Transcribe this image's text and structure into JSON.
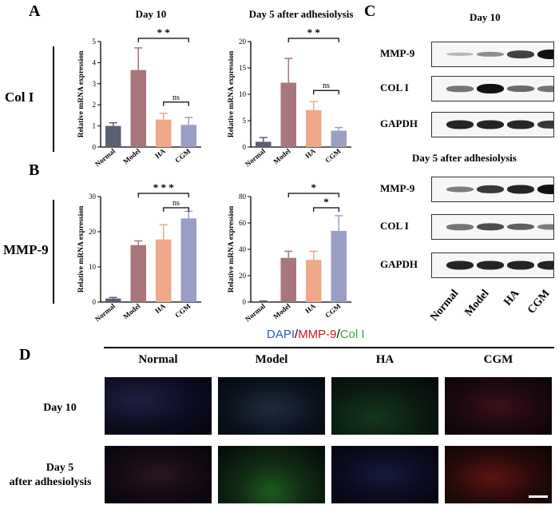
{
  "panels": {
    "A": "A",
    "B": "B",
    "C": "C",
    "D": "D"
  },
  "row_labels": {
    "col": "Col I",
    "mmp": "MMP-9"
  },
  "categories": [
    "Normal",
    "Model",
    "HA",
    "CGM"
  ],
  "colors": {
    "Normal": "#5b5f73",
    "Model": "#a8757b",
    "HA": "#f0a88a",
    "CGM": "#9a9ec4"
  },
  "chart_data": [
    {
      "type": "bar",
      "title": "Day 10",
      "ylabel": "Relative mRNA expression",
      "categories": [
        "Normal",
        "Model",
        "HA",
        "CGM"
      ],
      "values": [
        1.0,
        3.65,
        1.3,
        1.05
      ],
      "errors": [
        0.15,
        1.05,
        0.3,
        0.35
      ],
      "ylim": [
        0,
        5
      ],
      "yticks": [
        "0",
        "1",
        "2",
        "3",
        "4",
        "5"
      ],
      "annotations": [
        {
          "text": "* *",
          "from": 1,
          "to": 3
        },
        {
          "text": "ns",
          "from": 2,
          "to": 3
        }
      ]
    },
    {
      "type": "bar",
      "title": "Day 5 after adhesiolysis",
      "ylabel": "Relative mRNA expression",
      "categories": [
        "Normal",
        "Model",
        "HA",
        "CGM"
      ],
      "values": [
        1.0,
        12.2,
        7.0,
        3.1
      ],
      "errors": [
        0.8,
        4.6,
        1.6,
        0.6
      ],
      "ylim": [
        0,
        20
      ],
      "yticks": [
        "0",
        "5",
        "10",
        "15",
        "20"
      ],
      "annotations": [
        {
          "text": "* *",
          "from": 1,
          "to": 3
        },
        {
          "text": "ns",
          "from": 2,
          "to": 3
        }
      ]
    },
    {
      "type": "bar",
      "title": "",
      "ylabel": "Relative mRNA expression",
      "categories": [
        "Normal",
        "Model",
        "HA",
        "CGM"
      ],
      "values": [
        1.0,
        16.2,
        17.8,
        23.8
      ],
      "errors": [
        0.3,
        1.2,
        4.2,
        2.0
      ],
      "ylim": [
        0,
        30
      ],
      "yticks": [
        "0",
        "10",
        "20",
        "30"
      ],
      "annotations": [
        {
          "text": "* * *",
          "from": 1,
          "to": 3
        },
        {
          "text": "ns",
          "from": 2,
          "to": 3
        }
      ]
    },
    {
      "type": "bar",
      "title": "",
      "ylabel": "Relative mRNA expression",
      "categories": [
        "Normal",
        "Model",
        "HA",
        "CGM"
      ],
      "values": [
        0.5,
        33.5,
        32.0,
        54.0
      ],
      "errors": [
        0.3,
        5.0,
        6.5,
        11.5
      ],
      "ylim": [
        0,
        80
      ],
      "yticks": [
        "0",
        "20",
        "40",
        "60",
        "80"
      ],
      "annotations": [
        {
          "text": "*",
          "from": 1,
          "to": 3
        },
        {
          "text": "*",
          "from": 2,
          "to": 3
        }
      ]
    }
  ],
  "western": {
    "groups": [
      {
        "title": "Day 10",
        "rows": [
          {
            "label": "MMP-9",
            "intensity": [
              0.15,
              0.35,
              0.75,
              1.0
            ]
          },
          {
            "label": "COL I",
            "intensity": [
              0.5,
              1.0,
              0.55,
              0.5
            ]
          },
          {
            "label": "GAPDH",
            "intensity": [
              0.9,
              0.9,
              0.88,
              0.8
            ]
          }
        ]
      },
      {
        "title": "Day 5 after adhesiolysis",
        "rows": [
          {
            "label": "MMP-9",
            "intensity": [
              0.45,
              0.8,
              0.9,
              1.0
            ]
          },
          {
            "label": "COL I",
            "intensity": [
              0.5,
              0.7,
              0.6,
              0.45
            ]
          },
          {
            "label": "GAPDH",
            "intensity": [
              0.9,
              0.9,
              0.9,
              0.9
            ]
          }
        ]
      }
    ],
    "lanes": [
      "Normal",
      "Model",
      "HA",
      "CGM"
    ]
  },
  "fluorescence": {
    "title_parts": [
      "DAPI",
      "/",
      "MMP-9",
      "/",
      "Col I"
    ],
    "title_colors": [
      "#2f5bb7",
      "#000000",
      "#d4161c",
      "#000000",
      "#3aaa35"
    ],
    "columns": [
      "Normal",
      "Model",
      "HA",
      "CGM"
    ],
    "rows": [
      "Day 10",
      "Day 5",
      "after adhesiolysis"
    ]
  }
}
